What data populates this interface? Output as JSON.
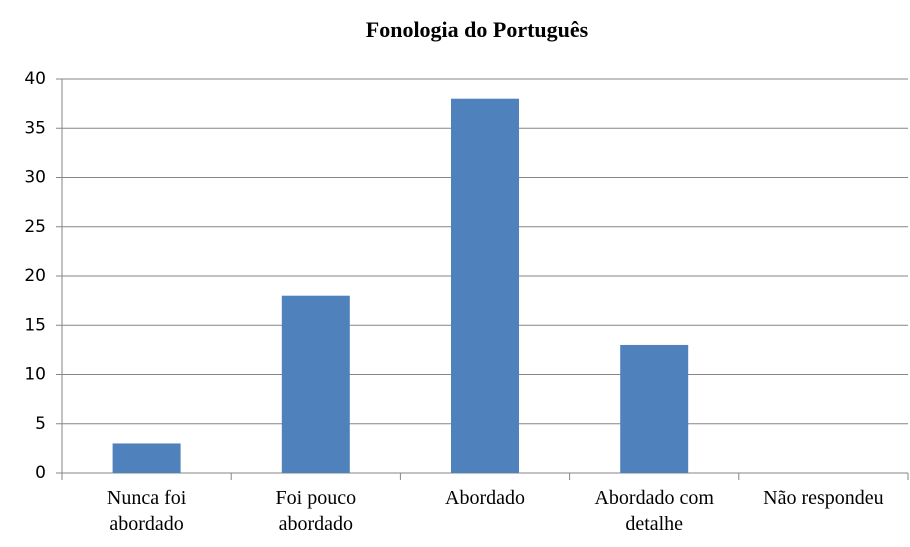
{
  "chart_data": {
    "type": "bar",
    "title": "Fonologia do Português",
    "categories": [
      "Nunca foi abordado",
      "Foi pouco abordado",
      "Abordado",
      "Abordado com detalhe",
      "Não respondeu"
    ],
    "values": [
      3,
      18,
      38,
      13,
      0
    ],
    "color": "#4f81bd",
    "ylim": [
      0,
      40
    ],
    "yticks": [
      0,
      5,
      10,
      15,
      20,
      25,
      30,
      35,
      40
    ],
    "grid": true
  }
}
